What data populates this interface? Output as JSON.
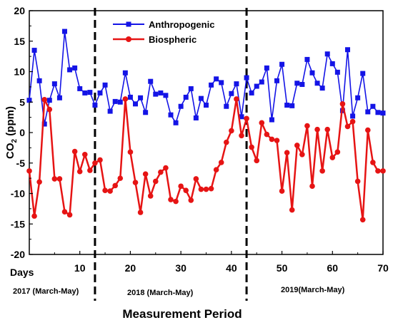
{
  "chart_data": {
    "type": "line",
    "xlabel_prefix": "Days",
    "xlabel": "Measurement Period",
    "ylabel": "CO2 (ppm)",
    "ylabel_main": "CO",
    "ylabel_sub": "2",
    "ylabel_unit": " (ppm)",
    "xlim": [
      0,
      70
    ],
    "ylim": [
      -20,
      20
    ],
    "xticks": [
      10,
      20,
      30,
      40,
      50,
      60,
      70
    ],
    "yticks": [
      -20,
      -15,
      -10,
      -5,
      0,
      5,
      10,
      15,
      20
    ],
    "grid": false,
    "legend_position": "top-center",
    "period_dividers": [
      13,
      43
    ],
    "periods": [
      "2017 (March-May)",
      "2018 (March-May)",
      "2019(March-May)"
    ],
    "series": [
      {
        "name": "Anthropogenic",
        "color": "#1414e6",
        "marker": "square",
        "x": [
          0,
          1,
          2,
          3,
          4,
          5,
          6,
          7,
          8,
          9,
          10,
          11,
          12,
          13,
          14,
          15,
          16,
          17,
          18,
          19,
          20,
          21,
          22,
          23,
          24,
          25,
          26,
          27,
          28,
          29,
          30,
          31,
          32,
          33,
          34,
          35,
          36,
          37,
          38,
          39,
          40,
          41,
          42,
          43,
          44,
          45,
          46,
          47,
          48,
          49,
          50,
          51,
          52,
          53,
          54,
          55,
          56,
          57,
          58,
          59,
          60,
          61,
          62,
          63,
          64,
          65,
          66,
          67,
          68,
          69,
          70
        ],
        "y": [
          5.3,
          13.5,
          8.5,
          1.4,
          5.3,
          8.0,
          5.7,
          16.6,
          10.3,
          10.6,
          7.2,
          6.5,
          6.6,
          4.5,
          6.5,
          7.8,
          3.5,
          5.1,
          5.0,
          9.8,
          5.8,
          4.7,
          5.7,
          3.3,
          8.4,
          6.3,
          6.5,
          6.1,
          2.9,
          1.6,
          4.3,
          5.8,
          7.2,
          2.4,
          5.6,
          4.5,
          7.8,
          8.8,
          8.2,
          4.3,
          6.4,
          8.0,
          2.6,
          9.0,
          6.5,
          7.6,
          8.3,
          10.6,
          2.1,
          8.5,
          11.2,
          4.5,
          4.4,
          8.1,
          7.9,
          12.0,
          9.8,
          8.1,
          7.3,
          12.9,
          11.3,
          9.9,
          3.6,
          13.6,
          2.7,
          5.7,
          9.7,
          3.4,
          4.3,
          3.3,
          3.2
        ]
      },
      {
        "name": "Biospheric",
        "color": "#e61414",
        "marker": "circle",
        "x": [
          0,
          1,
          2,
          3,
          4,
          5,
          6,
          7,
          8,
          9,
          10,
          11,
          12,
          13,
          14,
          15,
          16,
          17,
          18,
          19,
          20,
          21,
          22,
          23,
          24,
          25,
          26,
          27,
          28,
          29,
          30,
          31,
          32,
          33,
          34,
          35,
          36,
          37,
          38,
          39,
          40,
          41,
          42,
          43,
          44,
          45,
          46,
          47,
          48,
          49,
          50,
          51,
          52,
          53,
          54,
          55,
          56,
          57,
          58,
          59,
          60,
          61,
          62,
          63,
          64,
          65,
          66,
          67,
          68,
          69,
          70
        ],
        "y": [
          -6.3,
          -13.7,
          -8.1,
          5.4,
          3.8,
          -7.6,
          -7.6,
          -13.0,
          -13.5,
          -3.1,
          -6.4,
          -3.6,
          -6.2,
          -5.0,
          -4.5,
          -9.5,
          -9.6,
          -8.7,
          -7.5,
          5.5,
          -3.2,
          -8.2,
          -13.1,
          -6.8,
          -10.4,
          -8.0,
          -6.5,
          -5.8,
          -11.0,
          -11.3,
          -8.8,
          -9.5,
          -11.1,
          -7.6,
          -9.3,
          -9.3,
          -9.2,
          -6.1,
          -4.9,
          -1.6,
          0.3,
          5.5,
          -0.5,
          2.3,
          -2.4,
          -4.6,
          1.6,
          -0.3,
          -1.1,
          -1.3,
          -9.6,
          -3.3,
          -12.7,
          -2.1,
          -3.6,
          1.1,
          -8.8,
          0.5,
          -6.3,
          0.5,
          -4.1,
          -3.2,
          4.7,
          1.0,
          1.8,
          -8.0,
          -14.3,
          0.4,
          -4.9,
          -6.3,
          -6.3
        ]
      }
    ]
  }
}
